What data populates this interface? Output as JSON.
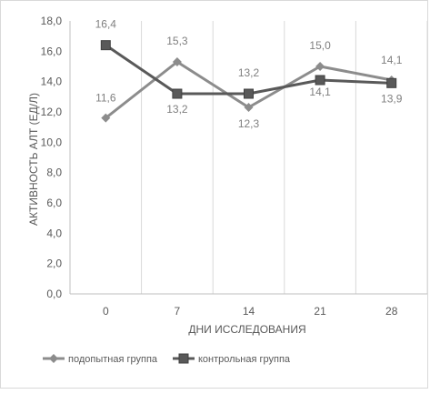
{
  "chart_data": {
    "type": "line",
    "title": "",
    "xlabel": "ДНИ ИССЛЕДОВАНИЯ",
    "ylabel": "АКТИВНОСТЬ АЛТ (ЕД/Л)",
    "categories": [
      "0",
      "7",
      "14",
      "21",
      "28"
    ],
    "ylim": [
      0,
      18
    ],
    "yticks": [
      "0,0",
      "2,0",
      "4,0",
      "6,0",
      "8,0",
      "10,0",
      "12,0",
      "14,0",
      "16,0",
      "18,0"
    ],
    "grid": "vertical",
    "legend_position": "bottom-left",
    "series": [
      {
        "name": "подопытная группа",
        "values": [
          11.6,
          15.3,
          12.3,
          15.0,
          14.1
        ],
        "labels": [
          "11,6",
          "15,3",
          "12,3",
          "15,0",
          "14,1"
        ],
        "color": "#8c8c8c",
        "marker": "diamond"
      },
      {
        "name": "контрольная группа",
        "values": [
          16.4,
          13.2,
          13.2,
          14.1,
          13.9
        ],
        "labels": [
          "16,4",
          "13,2",
          "13,2",
          "14,1",
          "13,9"
        ],
        "color": "#595959",
        "marker": "square"
      }
    ]
  }
}
